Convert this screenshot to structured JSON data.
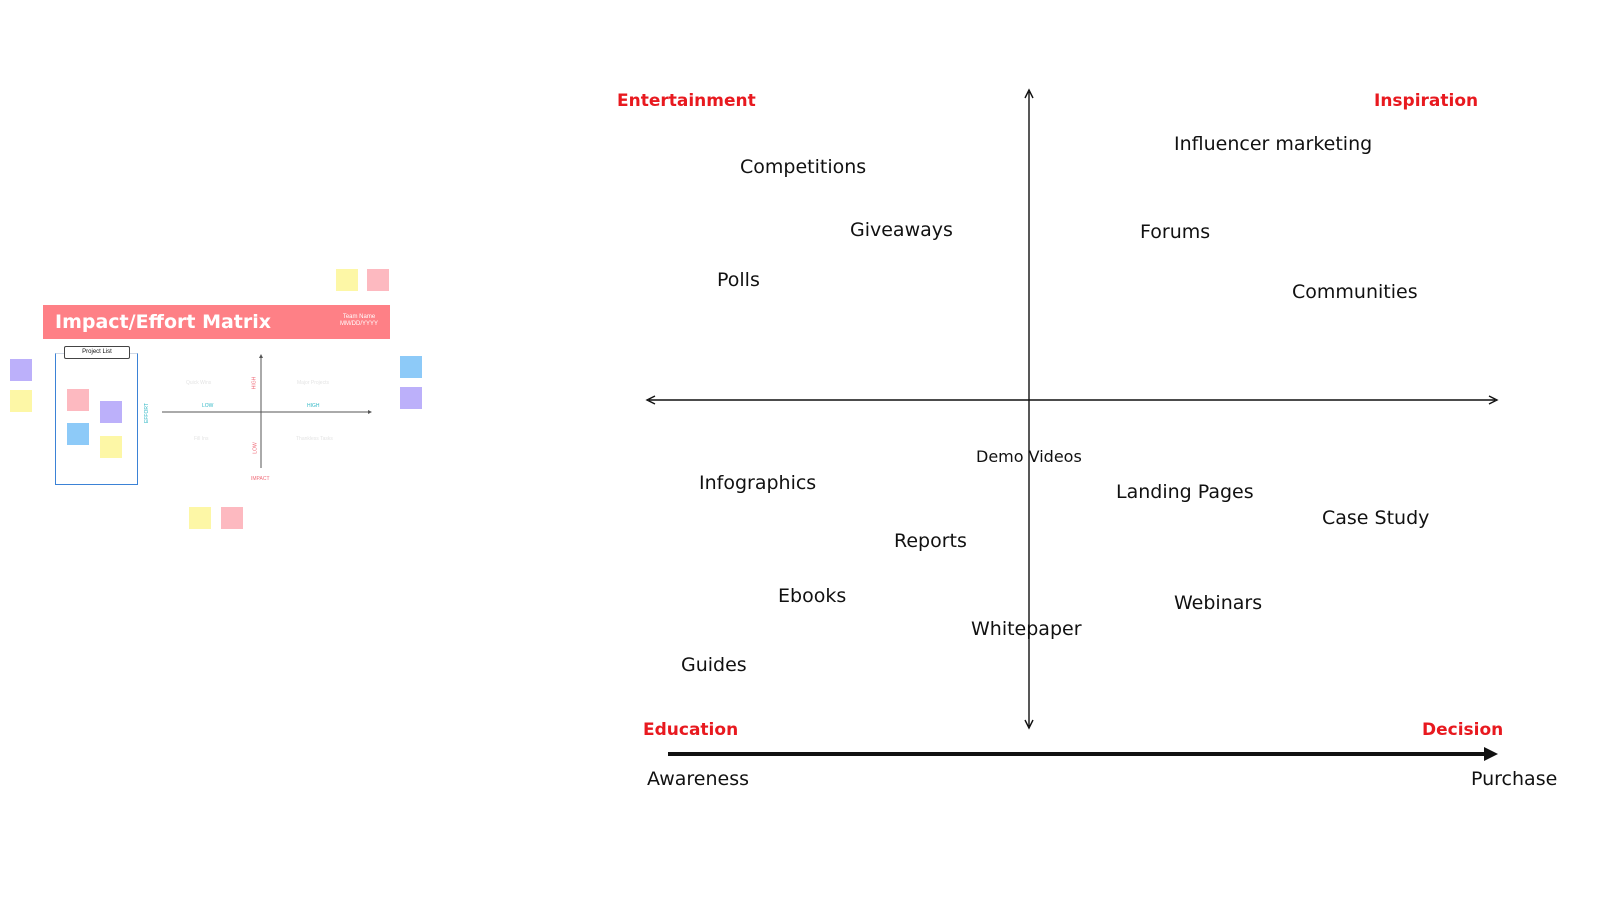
{
  "thumbnail": {
    "title": "Impact/Effort Matrix",
    "team_name": "Team Name",
    "date_placeholder": "MM/DD/YYYY",
    "project_list_label": "Project List",
    "axis_effort": "EFFORT",
    "axis_impact": "IMPACT",
    "low_label": "LOW",
    "high_label": "HIGH",
    "quadrant_quick_wins": "Quick Wins",
    "quadrant_major_projects": "Major Projects",
    "quadrant_fill_ins": "Fill Ins",
    "quadrant_thankless_tasks": "Thankless Tasks",
    "colors": {
      "banner": "#fe8086",
      "yellow": "#fdf7a6",
      "pink": "#fdb9c0",
      "purple": "#bcb0fa",
      "blue": "#8dcaf8"
    }
  },
  "quadrants": {
    "top_left": "Entertainment",
    "top_right": "Inspiration",
    "bottom_left": "Education",
    "bottom_right": "Decision",
    "label_color": "#e8191f"
  },
  "items": {
    "competitions": "Competitions",
    "giveaways": "Giveaways",
    "polls": "Polls",
    "influencer_marketing": "Influencer marketing",
    "forums": "Forums",
    "communities": "Communities",
    "demo_videos": "Demo Videos",
    "infographics": "Infographics",
    "landing_pages": "Landing Pages",
    "case_study": "Case Study",
    "reports": "Reports",
    "ebooks": "Ebooks",
    "webinars": "Webinars",
    "whitepaper": "Whitepaper",
    "guides": "Guides"
  },
  "journey": {
    "start": "Awareness",
    "end": "Purchase"
  }
}
